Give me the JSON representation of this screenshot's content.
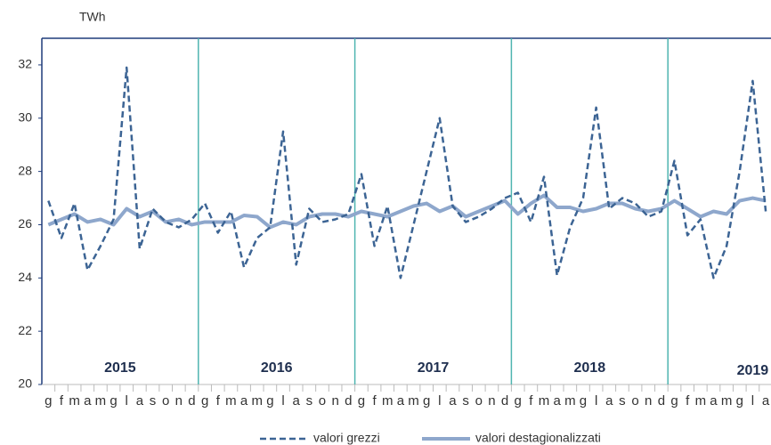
{
  "chart_data": {
    "type": "line",
    "y_label": "TWh",
    "categories": [
      "g",
      "f",
      "m",
      "a",
      "m",
      "g",
      "l",
      "a",
      "s",
      "o",
      "n",
      "d",
      "g",
      "f",
      "m",
      "a",
      "m",
      "g",
      "l",
      "a",
      "s",
      "o",
      "n",
      "d",
      "g",
      "f",
      "m",
      "a",
      "m",
      "g",
      "l",
      "a",
      "s",
      "o",
      "n",
      "d",
      "g",
      "f",
      "m",
      "a",
      "m",
      "g",
      "l",
      "a",
      "s",
      "o",
      "n",
      "d",
      "g",
      "f",
      "m",
      "a",
      "m",
      "g",
      "l",
      "a"
    ],
    "series": [
      {
        "name": "valori grezzi",
        "color": "#3c6494",
        "dashed": true,
        "values": [
          26.9,
          25.5,
          26.8,
          24.3,
          25.2,
          26.2,
          31.9,
          25.1,
          26.6,
          26.1,
          25.9,
          26.2,
          26.8,
          25.7,
          26.5,
          24.4,
          25.5,
          25.9,
          29.5,
          24.5,
          26.6,
          26.1,
          26.2,
          26.4,
          27.9,
          25.2,
          26.7,
          24.0,
          26.0,
          28.0,
          30.0,
          26.7,
          26.1,
          26.3,
          26.6,
          27.0,
          27.2,
          26.1,
          27.8,
          24.1,
          25.9,
          27.0,
          30.4,
          26.6,
          27.0,
          26.8,
          26.3,
          26.5,
          28.4,
          25.6,
          26.2,
          24.0,
          25.2,
          28.0,
          31.4,
          26.5
        ]
      },
      {
        "name": "valori destagionalizzati",
        "color": "#8ea7cc",
        "dashed": false,
        "values": [
          26.0,
          26.2,
          26.4,
          26.1,
          26.2,
          26.0,
          26.6,
          26.3,
          26.5,
          26.1,
          26.2,
          26.0,
          26.1,
          26.1,
          26.1,
          26.35,
          26.3,
          25.9,
          26.1,
          26.0,
          26.3,
          26.4,
          26.4,
          26.3,
          26.5,
          26.4,
          26.3,
          26.5,
          26.7,
          26.8,
          26.5,
          26.7,
          26.3,
          26.5,
          26.7,
          26.9,
          26.4,
          26.8,
          27.1,
          26.65,
          26.65,
          26.5,
          26.6,
          26.8,
          26.8,
          26.6,
          26.5,
          26.6,
          26.9,
          26.6,
          26.3,
          26.5,
          26.4,
          26.9,
          27.0,
          26.9
        ]
      }
    ],
    "annotations": [
      "2015",
      "2016",
      "2017",
      "2018",
      "2019"
    ],
    "ylim": [
      20,
      33
    ],
    "yticks": [
      20,
      22,
      24,
      26,
      28,
      30,
      32
    ],
    "grid": false
  }
}
